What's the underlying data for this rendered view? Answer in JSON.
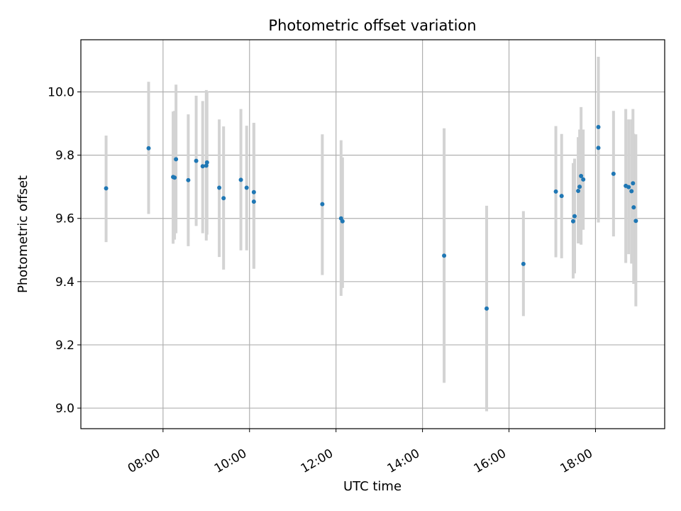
{
  "chart_data": {
    "type": "scatter",
    "title": "Photometric offset variation",
    "xlabel": "UTC time",
    "ylabel": "Photometric offset",
    "xlim": [
      "06:06",
      "19:36"
    ],
    "ylim": [
      8.935,
      10.165
    ],
    "x_ticks": [
      "08:00",
      "10:00",
      "12:00",
      "14:00",
      "16:00",
      "18:00"
    ],
    "y_ticks": [
      9.0,
      9.2,
      9.4,
      9.6,
      9.8,
      10.0
    ],
    "y_tick_labels": [
      "9.0",
      "9.2",
      "9.4",
      "9.6",
      "9.8",
      "10.0"
    ],
    "grid": true,
    "marker_color": "#1f77b4",
    "errorbar_color": "#d3d3d3",
    "points": [
      {
        "x": "06:41",
        "y": 9.695,
        "err_low": 9.525,
        "err_high": 9.862
      },
      {
        "x": "07:40",
        "y": 9.822,
        "err_low": 9.614,
        "err_high": 10.032
      },
      {
        "x": "08:14",
        "y": 9.731,
        "err_low": 9.52,
        "err_high": 9.938
      },
      {
        "x": "08:16",
        "y": 9.729,
        "err_low": 9.533,
        "err_high": 9.94
      },
      {
        "x": "08:18",
        "y": 9.787,
        "err_low": 9.553,
        "err_high": 10.023
      },
      {
        "x": "08:35",
        "y": 9.721,
        "err_low": 9.512,
        "err_high": 9.929
      },
      {
        "x": "08:46",
        "y": 9.782,
        "err_low": 9.576,
        "err_high": 9.988
      },
      {
        "x": "08:55",
        "y": 9.765,
        "err_low": 9.553,
        "err_high": 9.971
      },
      {
        "x": "09:00",
        "y": 9.767,
        "err_low": 9.53,
        "err_high": 10.006
      },
      {
        "x": "09:01",
        "y": 9.777,
        "err_low": 9.549,
        "err_high": 10.002
      },
      {
        "x": "09:18",
        "y": 9.697,
        "err_low": 9.478,
        "err_high": 9.913
      },
      {
        "x": "09:24",
        "y": 9.664,
        "err_low": 9.438,
        "err_high": 9.891
      },
      {
        "x": "09:48",
        "y": 9.722,
        "err_low": 9.499,
        "err_high": 9.946
      },
      {
        "x": "09:56",
        "y": 9.697,
        "err_low": 9.499,
        "err_high": 9.893
      },
      {
        "x": "10:06",
        "y": 9.683,
        "err_low": 9.441,
        "err_high": 9.902
      },
      {
        "x": "10:06",
        "y": 9.653,
        "err_low": 9.441,
        "err_high": 9.902
      },
      {
        "x": "11:41",
        "y": 9.645,
        "err_low": 9.421,
        "err_high": 9.866
      },
      {
        "x": "12:07",
        "y": 9.6,
        "err_low": 9.355,
        "err_high": 9.847
      },
      {
        "x": "12:09",
        "y": 9.591,
        "err_low": 9.38,
        "err_high": 9.793
      },
      {
        "x": "14:30",
        "y": 9.482,
        "err_low": 9.08,
        "err_high": 9.885
      },
      {
        "x": "15:29",
        "y": 9.315,
        "err_low": 8.99,
        "err_high": 9.64
      },
      {
        "x": "16:20",
        "y": 9.456,
        "err_low": 9.291,
        "err_high": 9.623
      },
      {
        "x": "17:05",
        "y": 9.685,
        "err_low": 9.477,
        "err_high": 9.892
      },
      {
        "x": "17:13",
        "y": 9.671,
        "err_low": 9.474,
        "err_high": 9.867
      },
      {
        "x": "17:29",
        "y": 9.591,
        "err_low": 9.41,
        "err_high": 9.775
      },
      {
        "x": "17:31",
        "y": 9.607,
        "err_low": 9.426,
        "err_high": 9.789
      },
      {
        "x": "17:36",
        "y": 9.687,
        "err_low": 9.521,
        "err_high": 9.857
      },
      {
        "x": "17:38",
        "y": 9.7,
        "err_low": 9.521,
        "err_high": 9.881
      },
      {
        "x": "17:40",
        "y": 9.734,
        "err_low": 9.517,
        "err_high": 9.952
      },
      {
        "x": "17:43",
        "y": 9.723,
        "err_low": 9.564,
        "err_high": 9.881
      },
      {
        "x": "18:04",
        "y": 9.889,
        "err_low": 9.587,
        "err_high": 10.111
      },
      {
        "x": "18:04",
        "y": 9.823,
        "err_low": 9.587,
        "err_high": 10.111
      },
      {
        "x": "18:25",
        "y": 9.741,
        "err_low": 9.543,
        "err_high": 9.94
      },
      {
        "x": "18:42",
        "y": 9.703,
        "err_low": 9.459,
        "err_high": 9.946
      },
      {
        "x": "18:46",
        "y": 9.699,
        "err_low": 9.487,
        "err_high": 9.913
      },
      {
        "x": "18:50",
        "y": 9.686,
        "err_low": 9.457,
        "err_high": 9.913
      },
      {
        "x": "18:52",
        "y": 9.711,
        "err_low": 9.457,
        "err_high": 9.946
      },
      {
        "x": "18:53",
        "y": 9.635,
        "err_low": 9.393,
        "err_high": 9.868
      },
      {
        "x": "18:56",
        "y": 9.592,
        "err_low": 9.322,
        "err_high": 9.866
      }
    ]
  }
}
